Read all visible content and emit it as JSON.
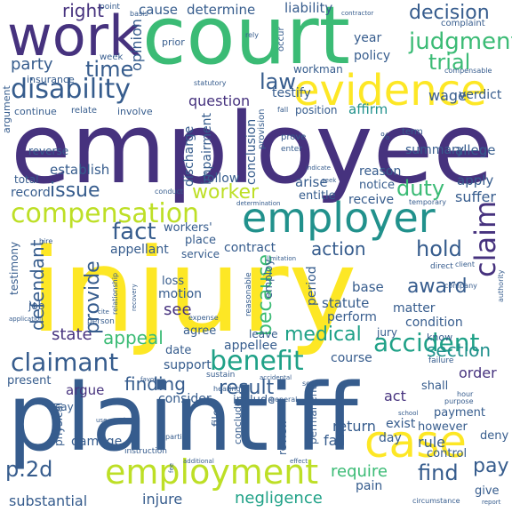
{
  "palette": {
    "dark_purple": "#440154",
    "purple": "#46327e",
    "indigo": "#414487",
    "blue": "#365c8d",
    "steel": "#2a788e",
    "teal": "#21918c",
    "sea": "#1fa187",
    "green": "#3bbb75",
    "lime": "#7ad151",
    "yellow_green": "#bddf26",
    "yellow": "#fde725"
  },
  "words": [
    {
      "text": "injury",
      "color": "yellow",
      "rot": 0
    },
    {
      "text": "employee",
      "color": "purple",
      "rot": 0
    },
    {
      "text": "plaintiff",
      "color": "blue",
      "rot": 0
    },
    {
      "text": "court",
      "color": "green",
      "rot": 0
    },
    {
      "text": "work",
      "color": "purple",
      "rot": 0
    },
    {
      "text": "evidence",
      "color": "yellow",
      "rot": 0
    },
    {
      "text": "employer",
      "color": "teal",
      "rot": 0
    },
    {
      "text": "case",
      "color": "yellow",
      "rot": 0
    },
    {
      "text": "employment",
      "color": "yellow_green",
      "rot": 0
    },
    {
      "text": "compensation",
      "color": "yellow_green",
      "rot": 0
    },
    {
      "text": "disability",
      "color": "blue",
      "rot": 0
    },
    {
      "text": "judgment",
      "color": "green",
      "rot": 0
    },
    {
      "text": "benefit",
      "color": "sea",
      "rot": 0
    },
    {
      "text": "claimant",
      "color": "blue",
      "rot": 0
    },
    {
      "text": "time",
      "color": "blue",
      "rot": 0
    },
    {
      "text": "trial",
      "color": "green",
      "rot": 0
    },
    {
      "text": "claim",
      "color": "purple",
      "rot": -90
    },
    {
      "text": "decision",
      "color": "blue",
      "rot": 0
    },
    {
      "text": "worker",
      "color": "yellow_green",
      "rot": 0
    },
    {
      "text": "fact",
      "color": "blue",
      "rot": 0
    },
    {
      "text": "law",
      "color": "blue",
      "rot": 0
    },
    {
      "text": "right",
      "color": "purple",
      "rot": 0
    },
    {
      "text": "issue",
      "color": "blue",
      "rot": 0
    },
    {
      "text": "duty",
      "color": "green",
      "rot": 0
    },
    {
      "text": "hold",
      "color": "blue",
      "rot": 0
    },
    {
      "text": "action",
      "color": "blue",
      "rot": 0
    },
    {
      "text": "medical",
      "color": "sea",
      "rot": 0
    },
    {
      "text": "accident",
      "color": "sea",
      "rot": 0
    },
    {
      "text": "section",
      "color": "teal",
      "rot": 0
    },
    {
      "text": "award",
      "color": "blue",
      "rot": 0
    },
    {
      "text": "appeal",
      "color": "green",
      "rot": 0
    },
    {
      "text": "finding",
      "color": "blue",
      "rot": 0
    },
    {
      "text": "result",
      "color": "blue",
      "rot": 0
    },
    {
      "text": "state",
      "color": "purple",
      "rot": 0
    },
    {
      "text": "provide",
      "color": "blue",
      "rot": -90
    },
    {
      "text": "because",
      "color": "green",
      "rot": -90
    },
    {
      "text": "see",
      "color": "purple",
      "rot": 0
    },
    {
      "text": "defendant",
      "color": "blue",
      "rot": -90
    },
    {
      "text": "p.2d",
      "color": "blue",
      "rot": 0
    },
    {
      "text": "find",
      "color": "blue",
      "rot": 0
    },
    {
      "text": "pay",
      "color": "blue",
      "rot": 0
    },
    {
      "text": "require",
      "color": "green",
      "rot": 0
    },
    {
      "text": "negligence",
      "color": "sea",
      "rot": 0
    },
    {
      "text": "substantial",
      "color": "blue",
      "rot": 0
    },
    {
      "text": "question",
      "color": "purple",
      "rot": 0
    },
    {
      "text": "party",
      "color": "blue",
      "rot": 0
    },
    {
      "text": "opinion",
      "color": "blue",
      "rot": -90
    },
    {
      "text": "cause",
      "color": "blue",
      "rot": 0
    },
    {
      "text": "determine",
      "color": "blue",
      "rot": 0
    },
    {
      "text": "liability",
      "color": "blue",
      "rot": 0
    },
    {
      "text": "year",
      "color": "blue",
      "rot": 0
    },
    {
      "text": "policy",
      "color": "blue",
      "rot": 0
    },
    {
      "text": "testify",
      "color": "blue",
      "rot": 0
    },
    {
      "text": "affirm",
      "color": "teal",
      "rot": 0
    },
    {
      "text": "position",
      "color": "blue",
      "rot": 0
    },
    {
      "text": "wage",
      "color": "blue",
      "rot": 0
    },
    {
      "text": "verdict",
      "color": "blue",
      "rot": 0
    },
    {
      "text": "discharge",
      "color": "blue",
      "rot": -90
    },
    {
      "text": "impairment",
      "color": "blue",
      "rot": -90
    },
    {
      "text": "conclusion",
      "color": "blue",
      "rot": -90
    },
    {
      "text": "summary",
      "color": "blue",
      "rot": 0
    },
    {
      "text": "allege",
      "color": "blue",
      "rot": 0
    },
    {
      "text": "establish",
      "color": "blue",
      "rot": 0
    },
    {
      "text": "total",
      "color": "blue",
      "rot": 0
    },
    {
      "text": "record",
      "color": "blue",
      "rot": 0
    },
    {
      "text": "follow",
      "color": "blue",
      "rot": 0
    },
    {
      "text": "arise",
      "color": "blue",
      "rot": 0
    },
    {
      "text": "entitle",
      "color": "blue",
      "rot": 0
    },
    {
      "text": "receive",
      "color": "blue",
      "rot": 0
    },
    {
      "text": "reason",
      "color": "blue",
      "rot": 0
    },
    {
      "text": "notice",
      "color": "blue",
      "rot": 0
    },
    {
      "text": "apply",
      "color": "blue",
      "rot": 0
    },
    {
      "text": "suffer",
      "color": "blue",
      "rot": 0
    },
    {
      "text": "contract",
      "color": "blue",
      "rot": 0
    },
    {
      "text": "appellant",
      "color": "blue",
      "rot": 0
    },
    {
      "text": "workers'",
      "color": "blue",
      "rot": 0
    },
    {
      "text": "place",
      "color": "blue",
      "rot": 0
    },
    {
      "text": "service",
      "color": "blue",
      "rot": 0
    },
    {
      "text": "testimony",
      "color": "blue",
      "rot": -90
    },
    {
      "text": "loss",
      "color": "blue",
      "rot": 0
    },
    {
      "text": "motion",
      "color": "blue",
      "rot": 0
    },
    {
      "text": "employ",
      "color": "blue",
      "rot": -90
    },
    {
      "text": "period",
      "color": "blue",
      "rot": -90
    },
    {
      "text": "base",
      "color": "blue",
      "rot": 0
    },
    {
      "text": "statute",
      "color": "blue",
      "rot": 0
    },
    {
      "text": "perform",
      "color": "blue",
      "rot": 0
    },
    {
      "text": "matter",
      "color": "blue",
      "rot": 0
    },
    {
      "text": "condition",
      "color": "blue",
      "rot": 0
    },
    {
      "text": "job",
      "color": "blue",
      "rot": 0
    },
    {
      "text": "agree",
      "color": "blue",
      "rot": 0
    },
    {
      "text": "leave",
      "color": "blue",
      "rot": 0
    },
    {
      "text": "appellee",
      "color": "blue",
      "rot": 0
    },
    {
      "text": "jury",
      "color": "blue",
      "rot": 0
    },
    {
      "text": "know",
      "color": "blue",
      "rot": 0
    },
    {
      "text": "date",
      "color": "blue",
      "rot": 0
    },
    {
      "text": "support",
      "color": "blue",
      "rot": 0
    },
    {
      "text": "course",
      "color": "blue",
      "rot": 0
    },
    {
      "text": "present",
      "color": "blue",
      "rot": 0
    },
    {
      "text": "argue",
      "color": "purple",
      "rot": 0
    },
    {
      "text": "consider",
      "color": "blue",
      "rot": 0
    },
    {
      "text": "order",
      "color": "purple",
      "rot": 0
    },
    {
      "text": "act",
      "color": "purple",
      "rot": 0
    },
    {
      "text": "shall",
      "color": "blue",
      "rot": 0
    },
    {
      "text": "say",
      "color": "blue",
      "rot": 0
    },
    {
      "text": "file",
      "color": "blue",
      "rot": -90
    },
    {
      "text": "include",
      "color": "blue",
      "rot": 0
    },
    {
      "text": "permanent",
      "color": "blue",
      "rot": -90
    },
    {
      "text": "return",
      "color": "blue",
      "rot": 0
    },
    {
      "text": "exist",
      "color": "blue",
      "rot": 0
    },
    {
      "text": "day",
      "color": "blue",
      "rot": 0
    },
    {
      "text": "fail",
      "color": "blue",
      "rot": 0
    },
    {
      "text": "rule",
      "color": "blue",
      "rot": 0
    },
    {
      "text": "however",
      "color": "blue",
      "rot": 0
    },
    {
      "text": "payment",
      "color": "blue",
      "rot": 0
    },
    {
      "text": "deny",
      "color": "blue",
      "rot": 0
    },
    {
      "text": "physical",
      "color": "blue",
      "rot": -90
    },
    {
      "text": "damage",
      "color": "blue",
      "rot": 0
    },
    {
      "text": "review",
      "color": "blue",
      "rot": -90
    },
    {
      "text": "conclude",
      "color": "blue",
      "rot": -90
    },
    {
      "text": "control",
      "color": "blue",
      "rot": 0
    },
    {
      "text": "injure",
      "color": "blue",
      "rot": 0
    },
    {
      "text": "pain",
      "color": "blue",
      "rot": 0
    },
    {
      "text": "give",
      "color": "blue",
      "rot": 0
    },
    {
      "text": "workman",
      "color": "blue",
      "rot": 0
    },
    {
      "text": "insurance",
      "color": "blue",
      "rot": 0
    },
    {
      "text": "continue",
      "color": "blue",
      "rot": 0
    },
    {
      "text": "relate",
      "color": "blue",
      "rot": 0
    },
    {
      "text": "involve",
      "color": "blue",
      "rot": 0
    },
    {
      "text": "reverse",
      "color": "blue",
      "rot": 0
    },
    {
      "text": "argument",
      "color": "blue",
      "rot": -90
    },
    {
      "text": "prior",
      "color": "blue",
      "rot": 0
    },
    {
      "text": "week",
      "color": "blue",
      "rot": 0
    },
    {
      "text": "point",
      "color": "blue",
      "rot": 0
    },
    {
      "text": "basis",
      "color": "blue",
      "rot": 0
    },
    {
      "text": "complaint",
      "color": "blue",
      "rot": 0
    },
    {
      "text": "compensable",
      "color": "blue",
      "rot": 0
    },
    {
      "text": "rely",
      "color": "blue",
      "rot": 0
    },
    {
      "text": "occur",
      "color": "blue",
      "rot": -90
    },
    {
      "text": "statutory",
      "color": "blue",
      "rot": 0
    },
    {
      "text": "fall",
      "color": "blue",
      "rot": 0
    },
    {
      "text": "prove",
      "color": "blue",
      "rot": 0
    },
    {
      "text": "enter",
      "color": "blue",
      "rot": 0
    },
    {
      "text": "provision",
      "color": "blue",
      "rot": -90
    },
    {
      "text": "term",
      "color": "blue",
      "rot": 0
    },
    {
      "text": "seek",
      "color": "blue",
      "rot": 0
    },
    {
      "text": "indicate",
      "color": "blue",
      "rot": 0
    },
    {
      "text": "conduct",
      "color": "blue",
      "rot": 0
    },
    {
      "text": "temporary",
      "color": "blue",
      "rot": 0
    },
    {
      "text": "determination",
      "color": "blue",
      "rot": 0
    },
    {
      "text": "hire",
      "color": "blue",
      "rot": 0
    },
    {
      "text": "limitation",
      "color": "blue",
      "rot": 0
    },
    {
      "text": "direct",
      "color": "blue",
      "rot": 0
    },
    {
      "text": "client",
      "color": "blue",
      "rot": 0
    },
    {
      "text": "company",
      "color": "blue",
      "rot": 0
    },
    {
      "text": "authority",
      "color": "blue",
      "rot": -90
    },
    {
      "text": "reasonable",
      "color": "blue",
      "rot": -90
    },
    {
      "text": "relationship",
      "color": "blue",
      "rot": -90
    },
    {
      "text": "recovery",
      "color": "blue",
      "rot": -90
    },
    {
      "text": "cite",
      "color": "blue",
      "rot": 0
    },
    {
      "text": "expense",
      "color": "blue",
      "rot": 0
    },
    {
      "text": "person",
      "color": "blue",
      "rot": 0
    },
    {
      "text": "application",
      "color": "blue",
      "rot": 0
    },
    {
      "text": "sustain",
      "color": "blue",
      "rot": 0
    },
    {
      "text": "hearing",
      "color": "blue",
      "rot": 0
    },
    {
      "text": "accidental",
      "color": "blue",
      "rot": 0
    },
    {
      "text": "second",
      "color": "blue",
      "rot": 0
    },
    {
      "text": "general",
      "color": "blue",
      "rot": 0
    },
    {
      "text": "favor",
      "color": "blue",
      "rot": 0
    },
    {
      "text": "failure",
      "color": "blue",
      "rot": 0
    },
    {
      "text": "hour",
      "color": "blue",
      "rot": 0
    },
    {
      "text": "purpose",
      "color": "blue",
      "rot": 0
    },
    {
      "text": "school",
      "color": "blue",
      "rot": 0
    },
    {
      "text": "use",
      "color": "blue",
      "rot": 0
    },
    {
      "text": "resolve",
      "color": "blue",
      "rot": 0
    },
    {
      "text": "partial",
      "color": "blue",
      "rot": 0
    },
    {
      "text": "instruction",
      "color": "blue",
      "rot": 0
    },
    {
      "text": "fee",
      "color": "blue",
      "rot": -90
    },
    {
      "text": "additional",
      "color": "blue",
      "rot": 0
    },
    {
      "text": "effect",
      "color": "blue",
      "rot": 0
    },
    {
      "text": "circumstance",
      "color": "blue",
      "rot": 0
    },
    {
      "text": "report",
      "color": "blue",
      "rot": 0
    },
    {
      "text": "contractor",
      "color": "blue",
      "rot": 0
    },
    {
      "text": "%",
      "color": "blue",
      "rot": 0
    }
  ]
}
